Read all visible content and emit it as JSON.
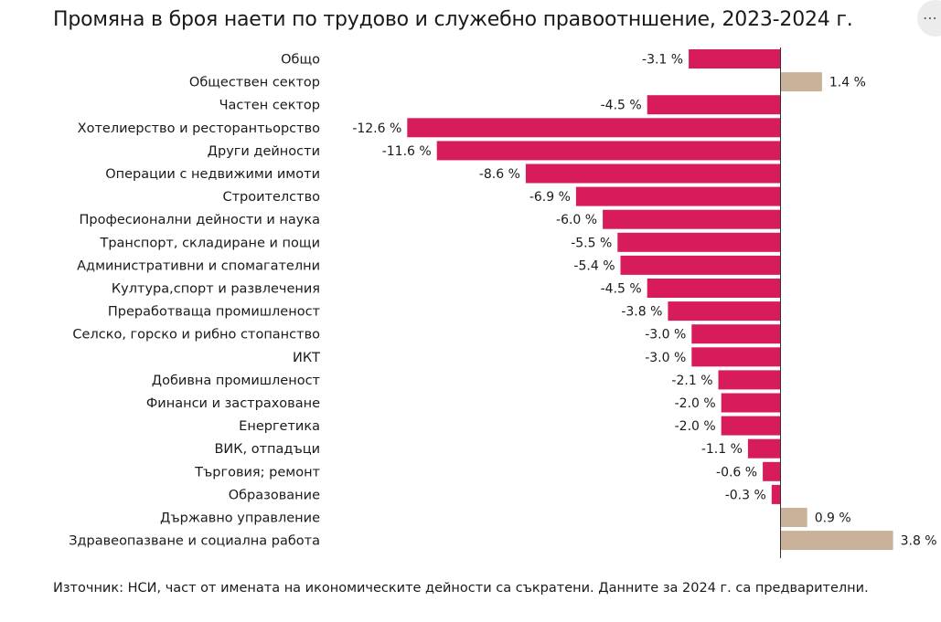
{
  "title": "Промяна в броя наети по трудово и служебно правоотншение, 2023-2024 г.",
  "source_note": "Източник: НСИ, част от имената на икономическите дейности са съкратени. Данните за 2024 г. са предварителни.",
  "corner_button": {
    "icon": "ellipsis-icon",
    "glyph": "⋯"
  },
  "colors": {
    "negative": "#d81b5a",
    "positive": "#c9b299",
    "axis": "#333333"
  },
  "chart_data": {
    "type": "bar",
    "orientation": "horizontal",
    "title": "Промяна в броя наети по трудово и служебно правоотншение, 2023-2024 г.",
    "categories": [
      "Общо",
      "Обществен сектор",
      "Частен сектор",
      "Хотелиерство и ресторантьорство",
      "Други дейности",
      "Операции с недвижими имоти",
      "Строителство",
      "Професионални дейности и наука",
      "Транспорт, складиране и пощи",
      "Административни и спомагателни",
      "Култура,спорт и развлечения",
      "Преработваща промишленост",
      "Селско, горско и рибно стопанство",
      "ИКТ",
      "Добивна промишленост",
      "Финанси и застраховане",
      "Енергетика",
      "ВИК, отпадъци",
      "Търговия; ремонт",
      "Образование",
      "Държавно управление",
      "Здравеопазване и социална работа"
    ],
    "values": [
      -3.1,
      1.4,
      -4.5,
      -12.6,
      -11.6,
      -8.6,
      -6.9,
      -6.0,
      -5.5,
      -5.4,
      -4.5,
      -3.8,
      -3.0,
      -3.0,
      -2.1,
      -2.0,
      -2.0,
      -1.1,
      -0.6,
      -0.3,
      0.9,
      3.8
    ],
    "value_labels": [
      "-3.1 %",
      "1.4 %",
      "-4.5 %",
      "-12.6 %",
      "-11.6 %",
      "-8.6 %",
      "-6.9 %",
      "-6.0 %",
      "-5.5 %",
      "-5.4 %",
      "-4.5 %",
      "-3.8 %",
      "-3.0 %",
      "-3.0 %",
      "-2.1 %",
      "-2.0 %",
      "-2.0 %",
      "-1.1 %",
      "-0.6 %",
      "-0.3 %",
      "0.9 %",
      "3.8 %"
    ],
    "value_unit": "%",
    "xlim": [
      -12.6,
      3.8
    ],
    "grid": false,
    "legend": "none"
  }
}
